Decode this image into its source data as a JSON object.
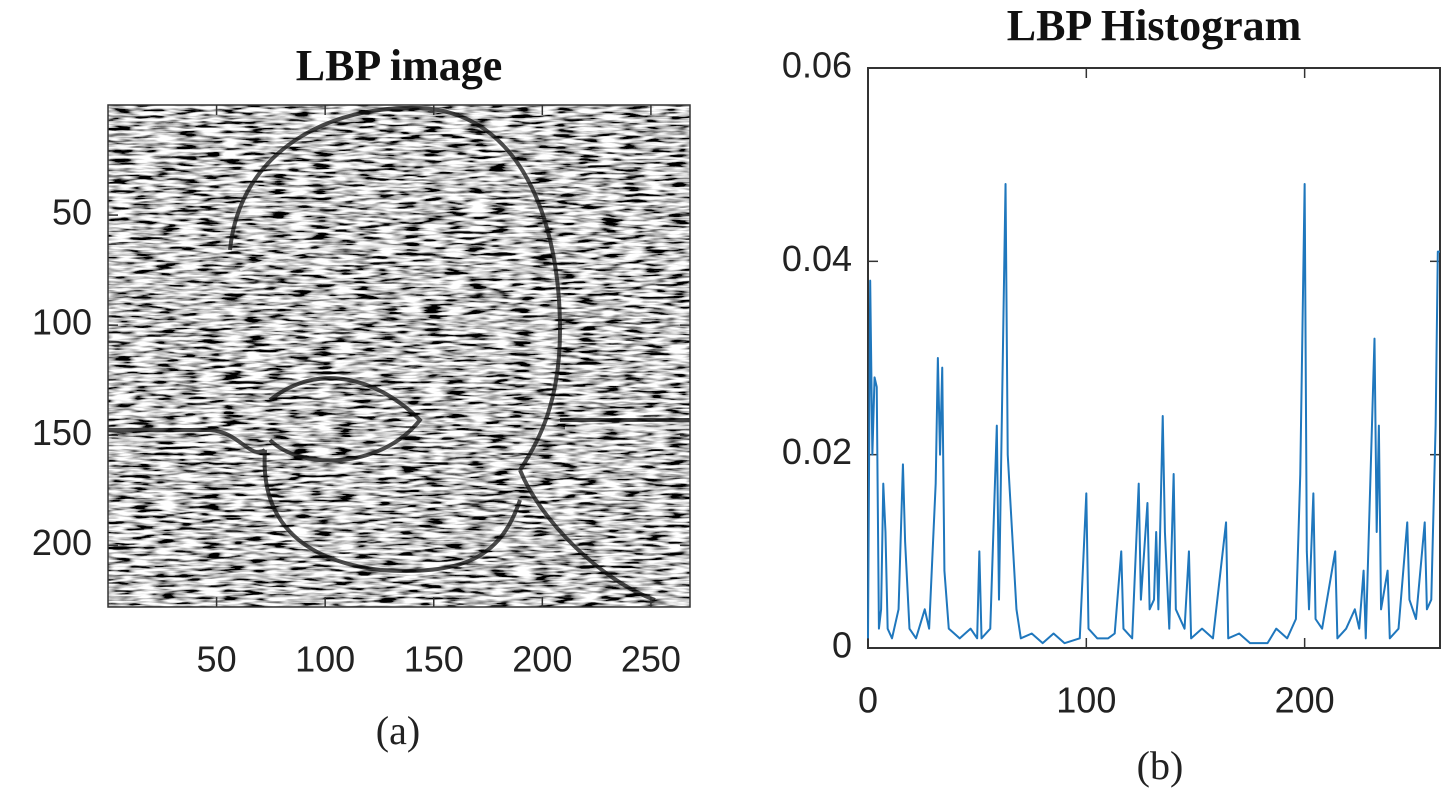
{
  "chart_data": [
    {
      "type": "image",
      "title": "LBP image",
      "caption": "(a)",
      "xlim": [
        0,
        268
      ],
      "xticks": [
        50,
        100,
        150,
        200,
        250
      ],
      "ylim": [
        0,
        228
      ],
      "yticks": [
        50,
        100,
        150,
        200
      ],
      "y_reversed": true
    },
    {
      "type": "line",
      "title": "LBP Histogram",
      "caption": "(b)",
      "color": "#1f77bd",
      "x": [
        0,
        1,
        2,
        3,
        4,
        5,
        6,
        7,
        8,
        9,
        11,
        14,
        16,
        17,
        19,
        22,
        26,
        28,
        31,
        32,
        33,
        34,
        35,
        37,
        42,
        47,
        50,
        51,
        52,
        56,
        59,
        60,
        63,
        64,
        66,
        68,
        70,
        75,
        80,
        85,
        90,
        97,
        100,
        101,
        105,
        110,
        113,
        116,
        117,
        121,
        124,
        125,
        128,
        129,
        131,
        132,
        133,
        135,
        136,
        138,
        140,
        141,
        145,
        147,
        148,
        153,
        158,
        164,
        165,
        170,
        175,
        183,
        187,
        192,
        196,
        198,
        200,
        201,
        202,
        204,
        205,
        208,
        214,
        215,
        219,
        223,
        225,
        227,
        228,
        232,
        233,
        234,
        235,
        238,
        239,
        243,
        247,
        248,
        251,
        255,
        256,
        258,
        260,
        261,
        262
      ],
      "values": [
        0.001,
        0.038,
        0.02,
        0.028,
        0.027,
        0.002,
        0.004,
        0.017,
        0.012,
        0.002,
        0.001,
        0.004,
        0.019,
        0.011,
        0.002,
        0.001,
        0.004,
        0.002,
        0.017,
        0.03,
        0.02,
        0.029,
        0.008,
        0.002,
        0.001,
        0.002,
        0.001,
        0.01,
        0.001,
        0.002,
        0.023,
        0.005,
        0.048,
        0.02,
        0.012,
        0.004,
        0.001,
        0.0015,
        0.0005,
        0.0015,
        0.0005,
        0.001,
        0.016,
        0.002,
        0.001,
        0.001,
        0.0015,
        0.01,
        0.002,
        0.001,
        0.017,
        0.005,
        0.015,
        0.004,
        0.005,
        0.012,
        0.004,
        0.024,
        0.012,
        0.002,
        0.018,
        0.004,
        0.002,
        0.01,
        0.001,
        0.002,
        0.001,
        0.013,
        0.001,
        0.0015,
        0.0005,
        0.0005,
        0.002,
        0.001,
        0.003,
        0.018,
        0.048,
        0.01,
        0.004,
        0.016,
        0.003,
        0.002,
        0.01,
        0.001,
        0.002,
        0.004,
        0.002,
        0.008,
        0.001,
        0.032,
        0.012,
        0.023,
        0.004,
        0.008,
        0.001,
        0.002,
        0.013,
        0.005,
        0.003,
        0.013,
        0.004,
        0.005,
        0.023,
        0.041,
        0.041
      ],
      "xlim": [
        0,
        262
      ],
      "xticks": [
        0,
        100,
        200
      ],
      "ylim": [
        0,
        0.06
      ],
      "yticks": [
        0,
        0.02,
        0.04,
        0.06
      ]
    }
  ]
}
